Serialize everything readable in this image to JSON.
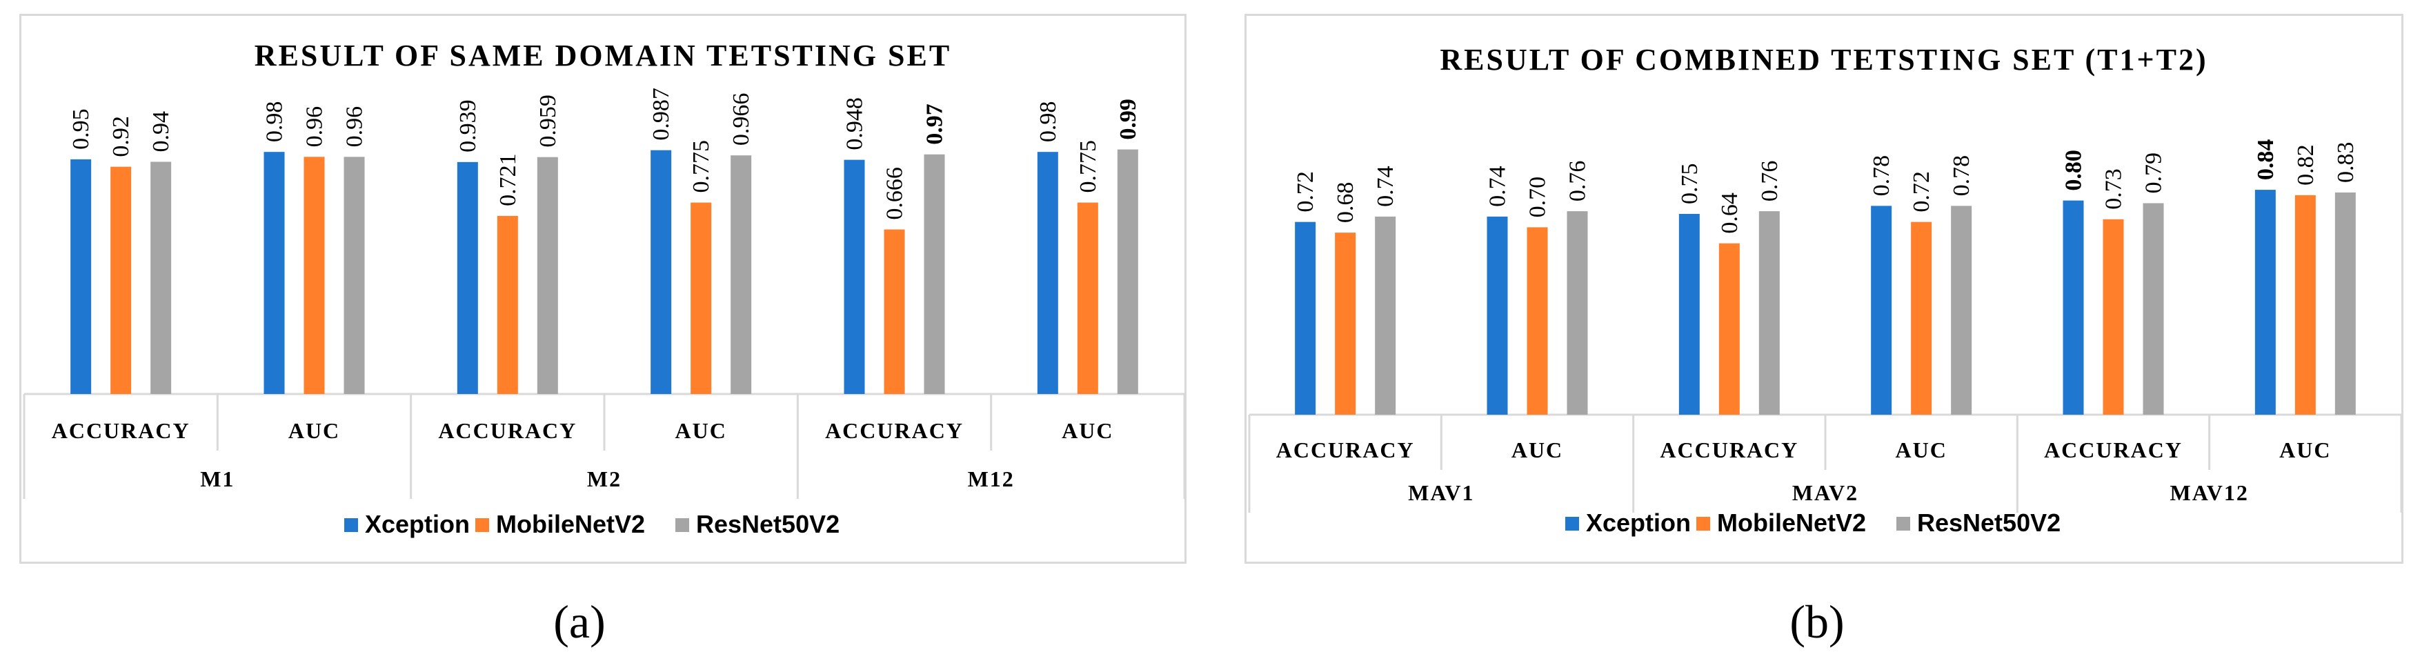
{
  "colors": {
    "Xception": "#1f77d0",
    "MobileNetV2": "#ff7f2a",
    "ResNet50V2": "#a5a5a5"
  },
  "captions": [
    "(a)",
    "(b)"
  ],
  "chart_data": [
    {
      "type": "bar",
      "title": "RESULT OF SAME DOMAIN TETSTING SET",
      "ylim": [
        0,
        1.0
      ],
      "grid": false,
      "legend_position": "bottom",
      "groups": [
        "M1",
        "M2",
        "M12"
      ],
      "metrics": [
        "ACCURACY",
        "AUC"
      ],
      "series_names": [
        "Xception",
        "MobileNetV2",
        "ResNet50V2"
      ],
      "data": [
        {
          "group": "M1",
          "metric": "ACCURACY",
          "values": [
            0.95,
            0.92,
            0.94
          ],
          "labels": [
            "0.95",
            "0.92",
            "0.94"
          ],
          "bold": [
            false,
            false,
            false
          ]
        },
        {
          "group": "M1",
          "metric": "AUC",
          "values": [
            0.98,
            0.96,
            0.96
          ],
          "labels": [
            "0.98",
            "0.96",
            "0.96"
          ],
          "bold": [
            false,
            false,
            false
          ]
        },
        {
          "group": "M2",
          "metric": "ACCURACY",
          "values": [
            0.939,
            0.721,
            0.959
          ],
          "labels": [
            "0.939",
            "0.721",
            "0.959"
          ],
          "bold": [
            false,
            false,
            false
          ]
        },
        {
          "group": "M2",
          "metric": "AUC",
          "values": [
            0.987,
            0.775,
            0.966
          ],
          "labels": [
            "0.987",
            "0.775",
            "0.966"
          ],
          "bold": [
            false,
            false,
            false
          ]
        },
        {
          "group": "M12",
          "metric": "ACCURACY",
          "values": [
            0.948,
            0.666,
            0.97
          ],
          "labels": [
            "0.948",
            "0.666",
            "0.97"
          ],
          "bold": [
            false,
            false,
            true
          ]
        },
        {
          "group": "M12",
          "metric": "AUC",
          "values": [
            0.98,
            0.775,
            0.99
          ],
          "labels": [
            "0.98",
            "0.775",
            "0.99"
          ],
          "bold": [
            false,
            false,
            true
          ]
        }
      ]
    },
    {
      "type": "bar",
      "title": "RESULT OF COMBINED TETSTING SET (T1+T2)",
      "ylim": [
        0,
        1.0
      ],
      "grid": false,
      "legend_position": "bottom",
      "groups": [
        "MAV1",
        "MAV2",
        "MAV12"
      ],
      "metrics": [
        "ACCURACY",
        "AUC"
      ],
      "series_names": [
        "Xception",
        "MobileNetV2",
        "ResNet50V2"
      ],
      "data": [
        {
          "group": "MAV1",
          "metric": "ACCURACY",
          "values": [
            0.72,
            0.68,
            0.74
          ],
          "labels": [
            "0.72",
            "0.68",
            "0.74"
          ],
          "bold": [
            false,
            false,
            false
          ]
        },
        {
          "group": "MAV1",
          "metric": "AUC",
          "values": [
            0.74,
            0.7,
            0.76
          ],
          "labels": [
            "0.74",
            "0.70",
            "0.76"
          ],
          "bold": [
            false,
            false,
            false
          ]
        },
        {
          "group": "MAV2",
          "metric": "ACCURACY",
          "values": [
            0.75,
            0.64,
            0.76
          ],
          "labels": [
            "0.75",
            "0.64",
            "0.76"
          ],
          "bold": [
            false,
            false,
            false
          ]
        },
        {
          "group": "MAV2",
          "metric": "AUC",
          "values": [
            0.78,
            0.72,
            0.78
          ],
          "labels": [
            "0.78",
            "0.72",
            "0.78"
          ],
          "bold": [
            false,
            false,
            false
          ]
        },
        {
          "group": "MAV12",
          "metric": "ACCURACY",
          "values": [
            0.8,
            0.73,
            0.79
          ],
          "labels": [
            "0.80",
            "0.73",
            "0.79"
          ],
          "bold": [
            true,
            false,
            false
          ]
        },
        {
          "group": "MAV12",
          "metric": "AUC",
          "values": [
            0.84,
            0.82,
            0.83
          ],
          "labels": [
            "0.84",
            "0.82",
            "0.83"
          ],
          "bold": [
            true,
            false,
            false
          ]
        }
      ]
    }
  ]
}
